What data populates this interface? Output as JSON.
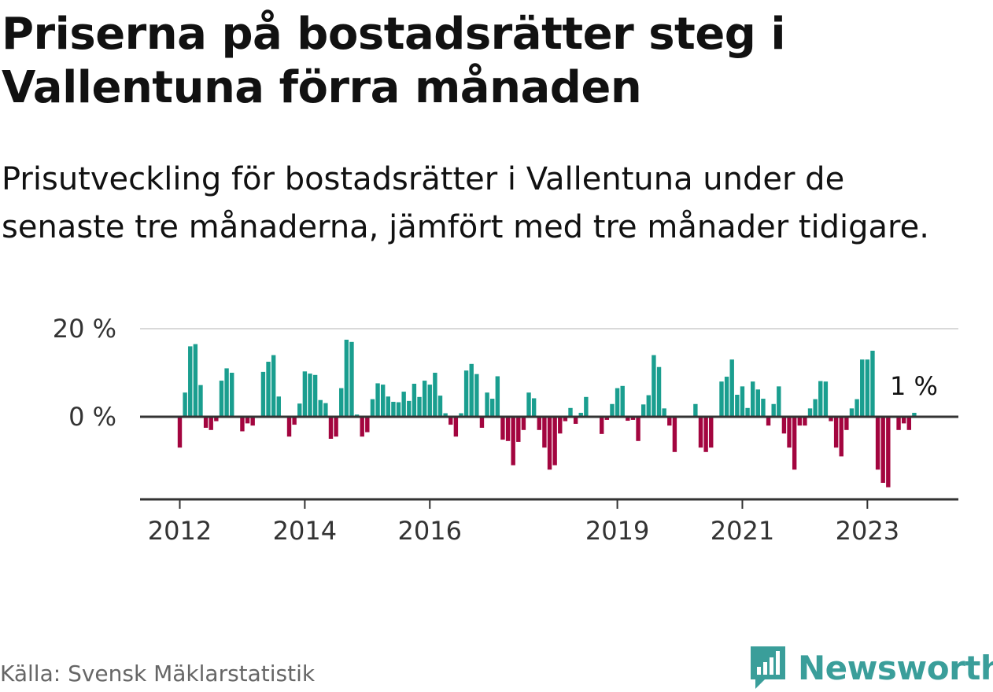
{
  "title": "Priserna på bostadsrätter steg i Vallentuna förra månaden",
  "subtitle": "Prisutveckling för bostadsrätter i Vallentuna under de senaste tre månaderna, jämfört med tre månader tidigare.",
  "source": "Källa: Svensk Mäklarstatistik",
  "brand": "Newsworthy",
  "colors": {
    "positive": "#1a9e8f",
    "negative": "#a3053f",
    "brand": "#3a9e9a"
  },
  "chart_data": {
    "type": "bar",
    "title": "",
    "xlabel": "",
    "ylabel": "",
    "ylim": [
      -18,
      21
    ],
    "y_ticks": [
      {
        "value": 20,
        "label": "20 %"
      },
      {
        "value": 0,
        "label": "0 %"
      }
    ],
    "x_ticks": [
      {
        "index": 0,
        "label": "2012"
      },
      {
        "index": 24,
        "label": "2014"
      },
      {
        "index": 48,
        "label": "2016"
      },
      {
        "index": 84,
        "label": "2019"
      },
      {
        "index": 108,
        "label": "2021"
      },
      {
        "index": 132,
        "label": "2023"
      }
    ],
    "annotation": {
      "index": 141,
      "label": "1 %"
    },
    "series": [
      {
        "name": "Prisutveckling (%)",
        "start": "2012-01",
        "values": [
          -7,
          5.5,
          16,
          16.5,
          7.2,
          -2.5,
          -3,
          -1,
          8.2,
          11,
          10,
          null,
          -3.3,
          -1.5,
          -2,
          null,
          10.2,
          12.5,
          14,
          4.6,
          null,
          -4.5,
          -1.8,
          3,
          10.3,
          9.8,
          9.5,
          3.8,
          3.1,
          -5,
          -4.5,
          6.5,
          17.5,
          17,
          0.5,
          -4.5,
          -3.5,
          4,
          7.6,
          7.3,
          4.6,
          3.4,
          3.3,
          5.7,
          3.6,
          7.5,
          4.5,
          8.2,
          7.3,
          10,
          4.8,
          0.8,
          -1.8,
          -4.5,
          0.8,
          10.5,
          12,
          9.7,
          -2.5,
          5.5,
          4.1,
          9.2,
          -5.2,
          -5.5,
          -11,
          -5.7,
          -3,
          5.5,
          4.2,
          -3,
          -7,
          -12,
          -11,
          -3.8,
          -1,
          2,
          -1.6,
          0.9,
          4.5,
          null,
          null,
          -3.9,
          -0.7,
          2.9,
          6.5,
          7,
          -0.9,
          -0.7,
          -5.5,
          2.8,
          4.9,
          14,
          11.3,
          1.9,
          -2,
          -8,
          null,
          null,
          null,
          2.9,
          -7,
          -8,
          -7,
          null,
          8,
          9.1,
          13,
          5,
          6.9,
          2,
          8,
          6.2,
          4.1,
          -2,
          2.9,
          6.9,
          -3.8,
          -7,
          -12,
          -2,
          -2,
          1.9,
          4,
          8.1,
          8,
          -1,
          -7,
          -9,
          -3,
          1.9,
          4,
          13,
          13,
          15,
          -12,
          -15,
          -16,
          null,
          -3,
          -1.5,
          -3,
          0.9
        ]
      }
    ]
  }
}
